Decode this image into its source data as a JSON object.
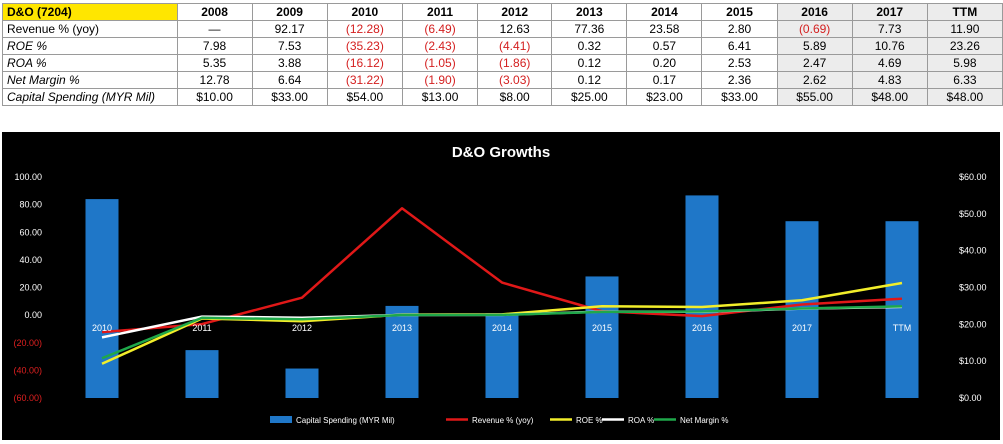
{
  "table": {
    "corner": "D&O (7204)",
    "years": [
      "2008",
      "2009",
      "2010",
      "2011",
      "2012",
      "2013",
      "2014",
      "2015",
      "2016",
      "2017",
      "TTM"
    ],
    "rows": [
      {
        "label": "Revenue % (yoy)",
        "values": [
          "—",
          "92.17",
          "(12.28)",
          "(6.49)",
          "12.63",
          "77.36",
          "23.58",
          "2.80",
          "(0.69)",
          "7.73",
          "11.90"
        ]
      },
      {
        "label": "ROE %",
        "values": [
          "7.98",
          "7.53",
          "(35.23)",
          "(2.43)",
          "(4.41)",
          "0.32",
          "0.57",
          "6.41",
          "5.89",
          "10.76",
          "23.26"
        ]
      },
      {
        "label": "ROA %",
        "values": [
          "5.35",
          "3.88",
          "(16.12)",
          "(1.05)",
          "(1.86)",
          "0.12",
          "0.20",
          "2.53",
          "2.47",
          "4.69",
          "5.98"
        ]
      },
      {
        "label": "Net Margin %",
        "values": [
          "12.78",
          "6.64",
          "(31.22)",
          "(1.90)",
          "(3.03)",
          "0.12",
          "0.17",
          "2.36",
          "2.62",
          "4.83",
          "6.33"
        ]
      },
      {
        "label": "Capital Spending (MYR Mil)",
        "values": [
          "$10.00",
          "$33.00",
          "$54.00",
          "$13.00",
          "$8.00",
          "$25.00",
          "$23.00",
          "$33.00",
          "$55.00",
          "$48.00",
          "$48.00"
        ]
      }
    ]
  },
  "chart_data": {
    "type": "bar",
    "title": "D&O Growths",
    "categories": [
      "2010",
      "2011",
      "2012",
      "2013",
      "2014",
      "2015",
      "2016",
      "2017",
      "TTM"
    ],
    "bar_series": {
      "name": "Capital Spending (MYR Mil)",
      "axis": "right",
      "color": "#1f77c8",
      "values": [
        54,
        13,
        8,
        25,
        23,
        33,
        55,
        48,
        48
      ]
    },
    "line_series": [
      {
        "name": "Revenue % (yoy)",
        "color": "#e01818",
        "values": [
          -12.28,
          -6.49,
          12.63,
          77.36,
          23.58,
          2.8,
          -0.69,
          7.73,
          11.9
        ]
      },
      {
        "name": "ROE %",
        "color": "#f2ee2a",
        "values": [
          -35.23,
          -2.43,
          -4.41,
          0.32,
          0.57,
          6.41,
          5.89,
          10.76,
          23.26
        ]
      },
      {
        "name": "ROA %",
        "color": "#ffffff",
        "values": [
          -16.12,
          -1.05,
          -1.86,
          0.12,
          0.2,
          2.53,
          2.47,
          4.69,
          5.98
        ]
      },
      {
        "name": "Net Margin %",
        "color": "#1fa84a",
        "values": [
          -31.22,
          -1.9,
          -3.03,
          0.12,
          0.17,
          2.36,
          2.62,
          4.83,
          6.33
        ]
      }
    ],
    "left_axis": {
      "min": -60,
      "max": 100,
      "step": 20,
      "ticks": [
        "100.00",
        "80.00",
        "60.00",
        "40.00",
        "20.00",
        "0.00",
        "(20.00)",
        "(40.00)",
        "(60.00)"
      ]
    },
    "right_axis": {
      "min": 0,
      "max": 60,
      "step": 10,
      "ticks": [
        "$60.00",
        "$50.00",
        "$40.00",
        "$30.00",
        "$20.00",
        "$10.00",
        "$0.00"
      ]
    },
    "legend_position": "bottom",
    "grid": false
  }
}
